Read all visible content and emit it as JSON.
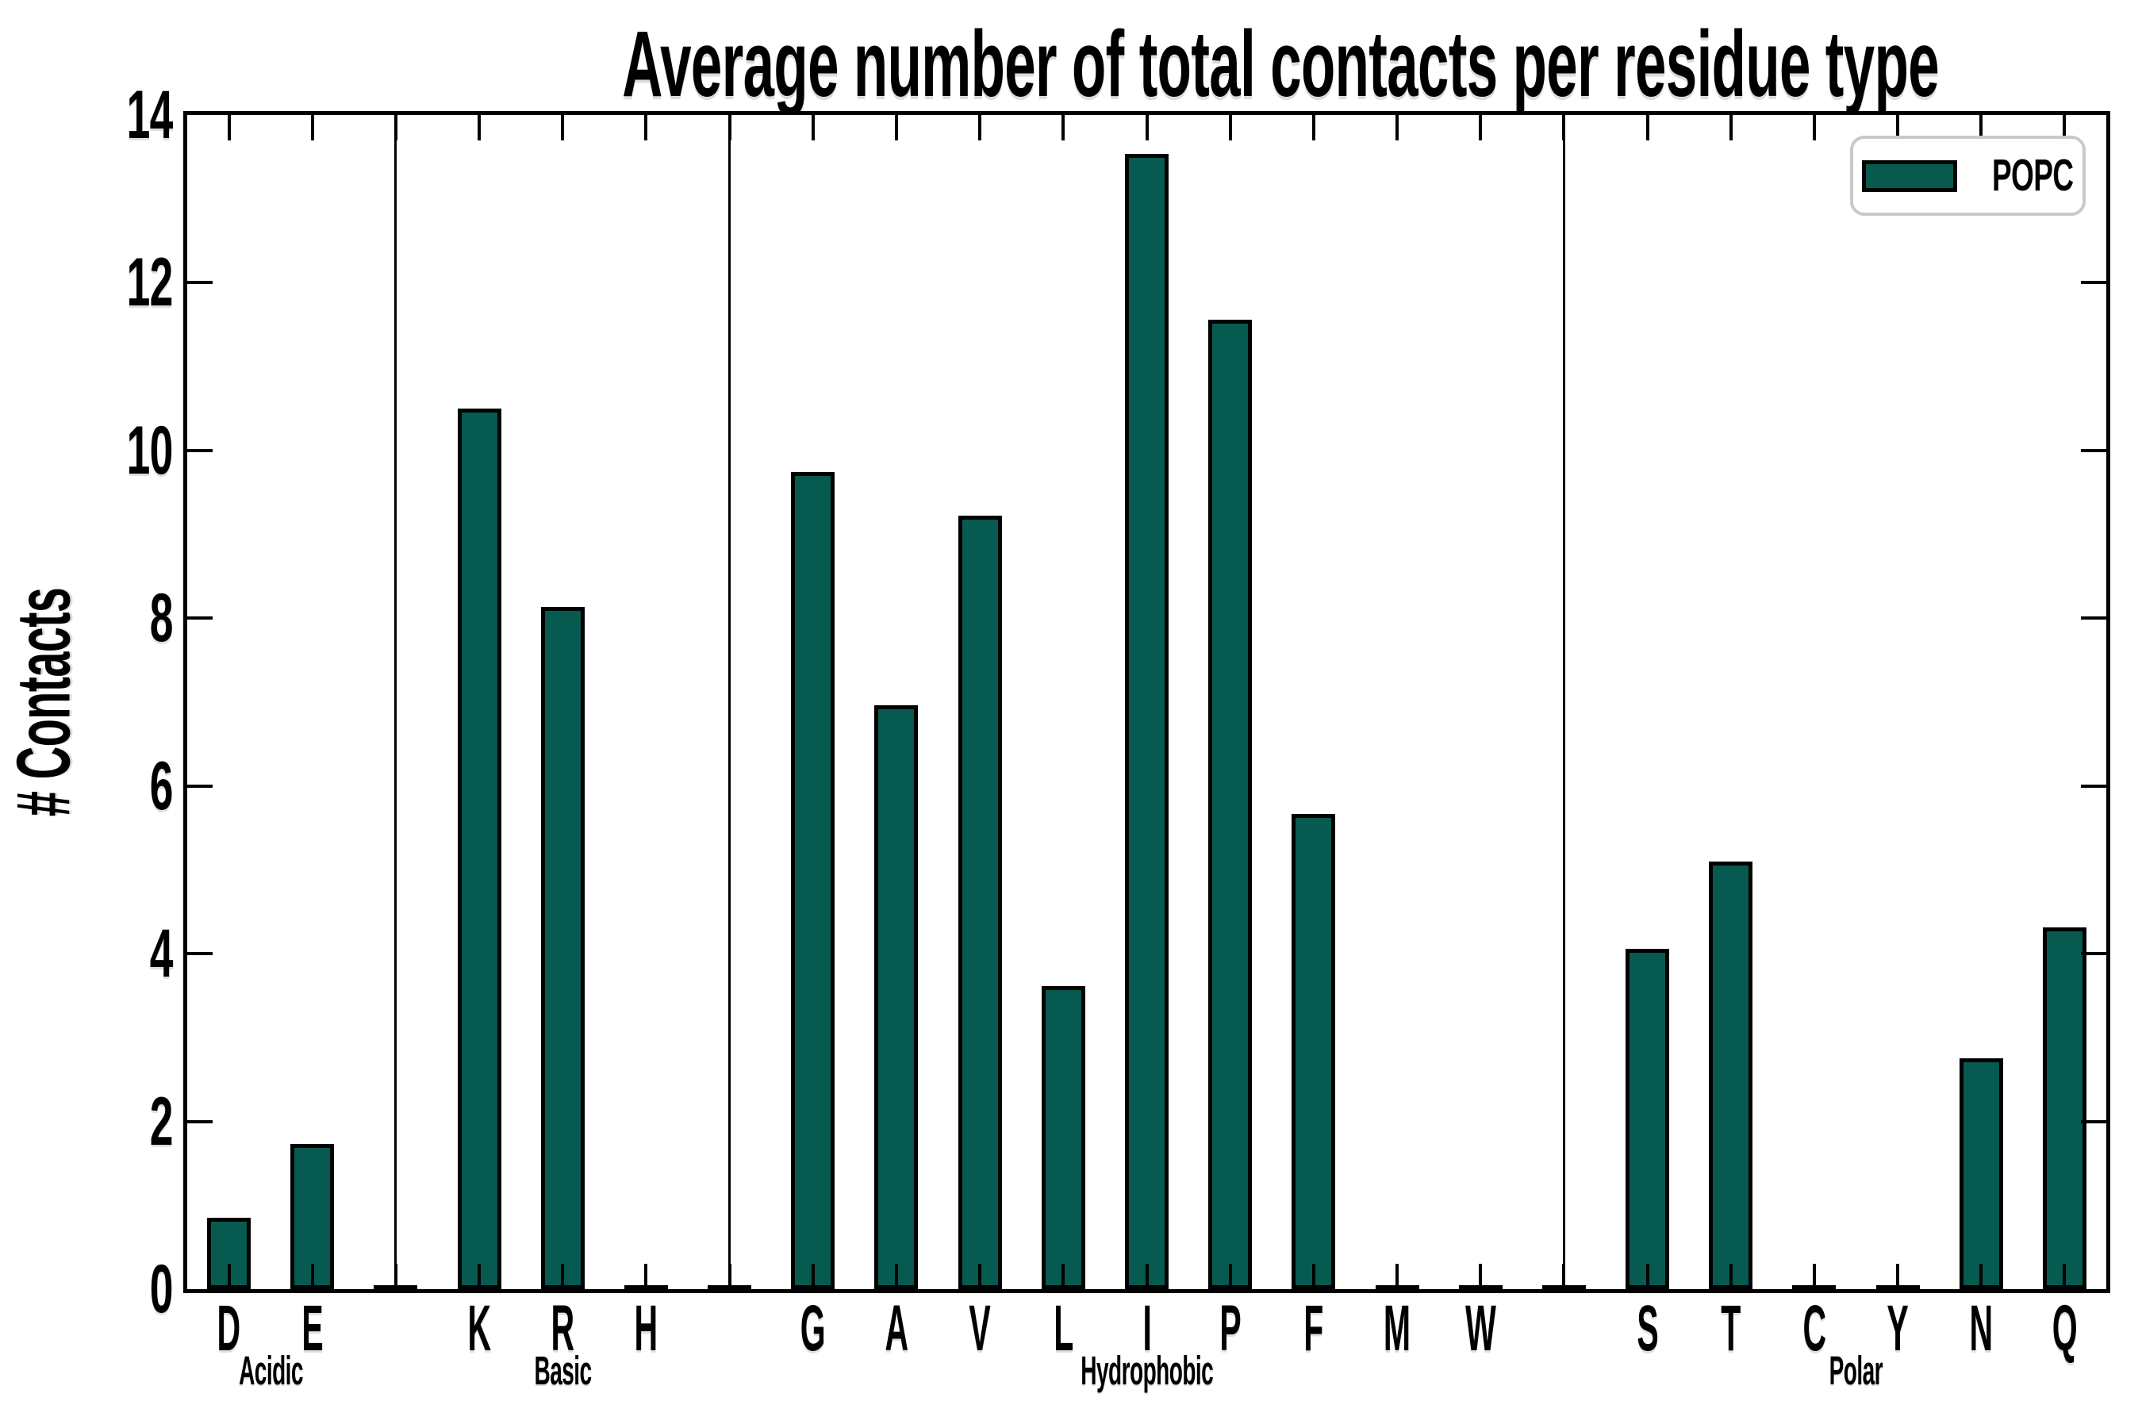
{
  "chart_data": {
    "type": "bar",
    "title": "Average number of total contacts per residue type",
    "ylabel": "# Contacts",
    "xlabel": "",
    "ylim": [
      0,
      14
    ],
    "yticks": [
      0,
      2,
      4,
      6,
      8,
      10,
      12,
      14
    ],
    "grid": false,
    "bar_color": "#065a50",
    "bar_edge_color": "#000000",
    "separator_bump_value": 0.03,
    "legend": {
      "label": "POPC",
      "color": "#065a50",
      "position": "upper-right"
    },
    "groups": [
      {
        "label": "Acidic",
        "categories": [
          "D",
          "E"
        ],
        "values": [
          0.85,
          1.73
        ]
      },
      {
        "label": "Basic",
        "categories": [
          "K",
          "R",
          "H"
        ],
        "values": [
          10.5,
          8.14,
          0.03
        ]
      },
      {
        "label": "Hydrophobic",
        "categories": [
          "G",
          "A",
          "V",
          "L",
          "I",
          "P",
          "F",
          "M",
          "W"
        ],
        "values": [
          9.74,
          6.96,
          9.22,
          3.61,
          13.54,
          11.56,
          5.67,
          0.03,
          0.03
        ]
      },
      {
        "label": "Polar",
        "categories": [
          "S",
          "T",
          "C",
          "Y",
          "N",
          "Q"
        ],
        "values": [
          4.06,
          5.1,
          0.02,
          0.03,
          2.75,
          4.31
        ]
      }
    ]
  }
}
